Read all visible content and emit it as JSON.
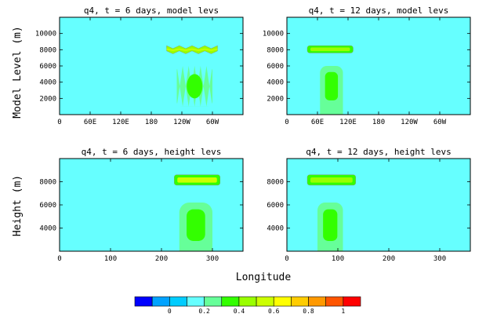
{
  "colors": {
    "levels": [
      "#0000ff",
      "#00a2ff",
      "#00ccff",
      "#66ffff",
      "#66ff99",
      "#33ff00",
      "#99ff00",
      "#ccff00",
      "#ffff00",
      "#ffcc00",
      "#ff9900",
      "#ff5500",
      "#ff0000"
    ],
    "background_field": "#00ccff",
    "text": "#000000"
  },
  "figure": {
    "xlabel": "Longitude",
    "row_ylabels": [
      "Model Level (m)",
      "Height (m)"
    ]
  },
  "colorbar": {
    "levels_ticks": [
      "0",
      "0.2",
      "0.4",
      "0.6",
      "0.8",
      "1"
    ],
    "bin_count": 13
  },
  "chart_data": [
    {
      "type": "heatmap",
      "title": "q4, t = 6 days, model levs",
      "ylabel": "Model Level (m)",
      "x_ticks": [
        "0",
        "60E",
        "120E",
        "180",
        "120W",
        "60W"
      ],
      "x_tick_values": [
        0,
        60,
        120,
        180,
        240,
        300
      ],
      "y_ticks": [
        "2000",
        "4000",
        "6000",
        "8000",
        "10000"
      ],
      "y_tick_values": [
        2000,
        4000,
        6000,
        8000,
        10000
      ],
      "xlim": [
        0,
        360
      ],
      "ylim": [
        0,
        12000
      ],
      "background_value": 0.1,
      "features": [
        {
          "kind": "zigzag-band",
          "lon": [
            210,
            310
          ],
          "alt": [
            7500,
            8500
          ],
          "value": 0.45,
          "core_value": 0.55
        },
        {
          "kind": "striped-column",
          "lon": [
            230,
            300
          ],
          "alt": [
            1000,
            6000
          ],
          "value": 0.3,
          "core_value": 0.35
        }
      ]
    },
    {
      "type": "heatmap",
      "title": "q4, t = 12 days, model levs",
      "ylabel": "",
      "x_ticks": [
        "0",
        "60E",
        "120E",
        "180",
        "120W",
        "60W"
      ],
      "x_tick_values": [
        0,
        60,
        120,
        180,
        240,
        300
      ],
      "y_ticks": [
        "2000",
        "4000",
        "6000",
        "8000",
        "10000"
      ],
      "y_tick_values": [
        2000,
        4000,
        6000,
        8000,
        10000
      ],
      "xlim": [
        0,
        360
      ],
      "ylim": [
        0,
        12000
      ],
      "background_value": 0.1,
      "features": [
        {
          "kind": "band",
          "lon": [
            40,
            130
          ],
          "alt": [
            7600,
            8500
          ],
          "value": 0.3,
          "core_value": 0.45
        },
        {
          "kind": "column",
          "lon": [
            65,
            110
          ],
          "alt": [
            1000,
            6000
          ],
          "value": 0.2,
          "core_value": 0.3
        }
      ]
    },
    {
      "type": "heatmap",
      "title": "q4, t = 6 days, height levs",
      "ylabel": "Height (m)",
      "x_ticks": [
        "0",
        "100",
        "200",
        "300"
      ],
      "x_tick_values": [
        0,
        100,
        200,
        300
      ],
      "y_ticks": [
        "4000",
        "6000",
        "8000"
      ],
      "y_tick_values": [
        4000,
        6000,
        8000
      ],
      "xlim": [
        0,
        360
      ],
      "ylim": [
        2000,
        10000
      ],
      "background_value": 0.1,
      "features": [
        {
          "kind": "band",
          "lon": [
            225,
            315
          ],
          "alt": [
            7700,
            8600
          ],
          "value": 0.35,
          "core_value": 0.55
        },
        {
          "kind": "column",
          "lon": [
            235,
            300
          ],
          "alt": [
            2300,
            6200
          ],
          "value": 0.2,
          "core_value": 0.3
        }
      ]
    },
    {
      "type": "heatmap",
      "title": "q4, t = 12 days, height levs",
      "ylabel": "",
      "x_ticks": [
        "0",
        "100",
        "200",
        "300"
      ],
      "x_tick_values": [
        0,
        100,
        200,
        300
      ],
      "y_ticks": [
        "4000",
        "6000",
        "8000"
      ],
      "y_tick_values": [
        4000,
        6000,
        8000
      ],
      "xlim": [
        0,
        360
      ],
      "ylim": [
        2000,
        10000
      ],
      "background_value": 0.1,
      "features": [
        {
          "kind": "band",
          "lon": [
            40,
            135
          ],
          "alt": [
            7700,
            8600
          ],
          "value": 0.35,
          "core_value": 0.45
        },
        {
          "kind": "column",
          "lon": [
            60,
            110
          ],
          "alt": [
            2300,
            6200
          ],
          "value": 0.2,
          "core_value": 0.3
        }
      ]
    }
  ]
}
